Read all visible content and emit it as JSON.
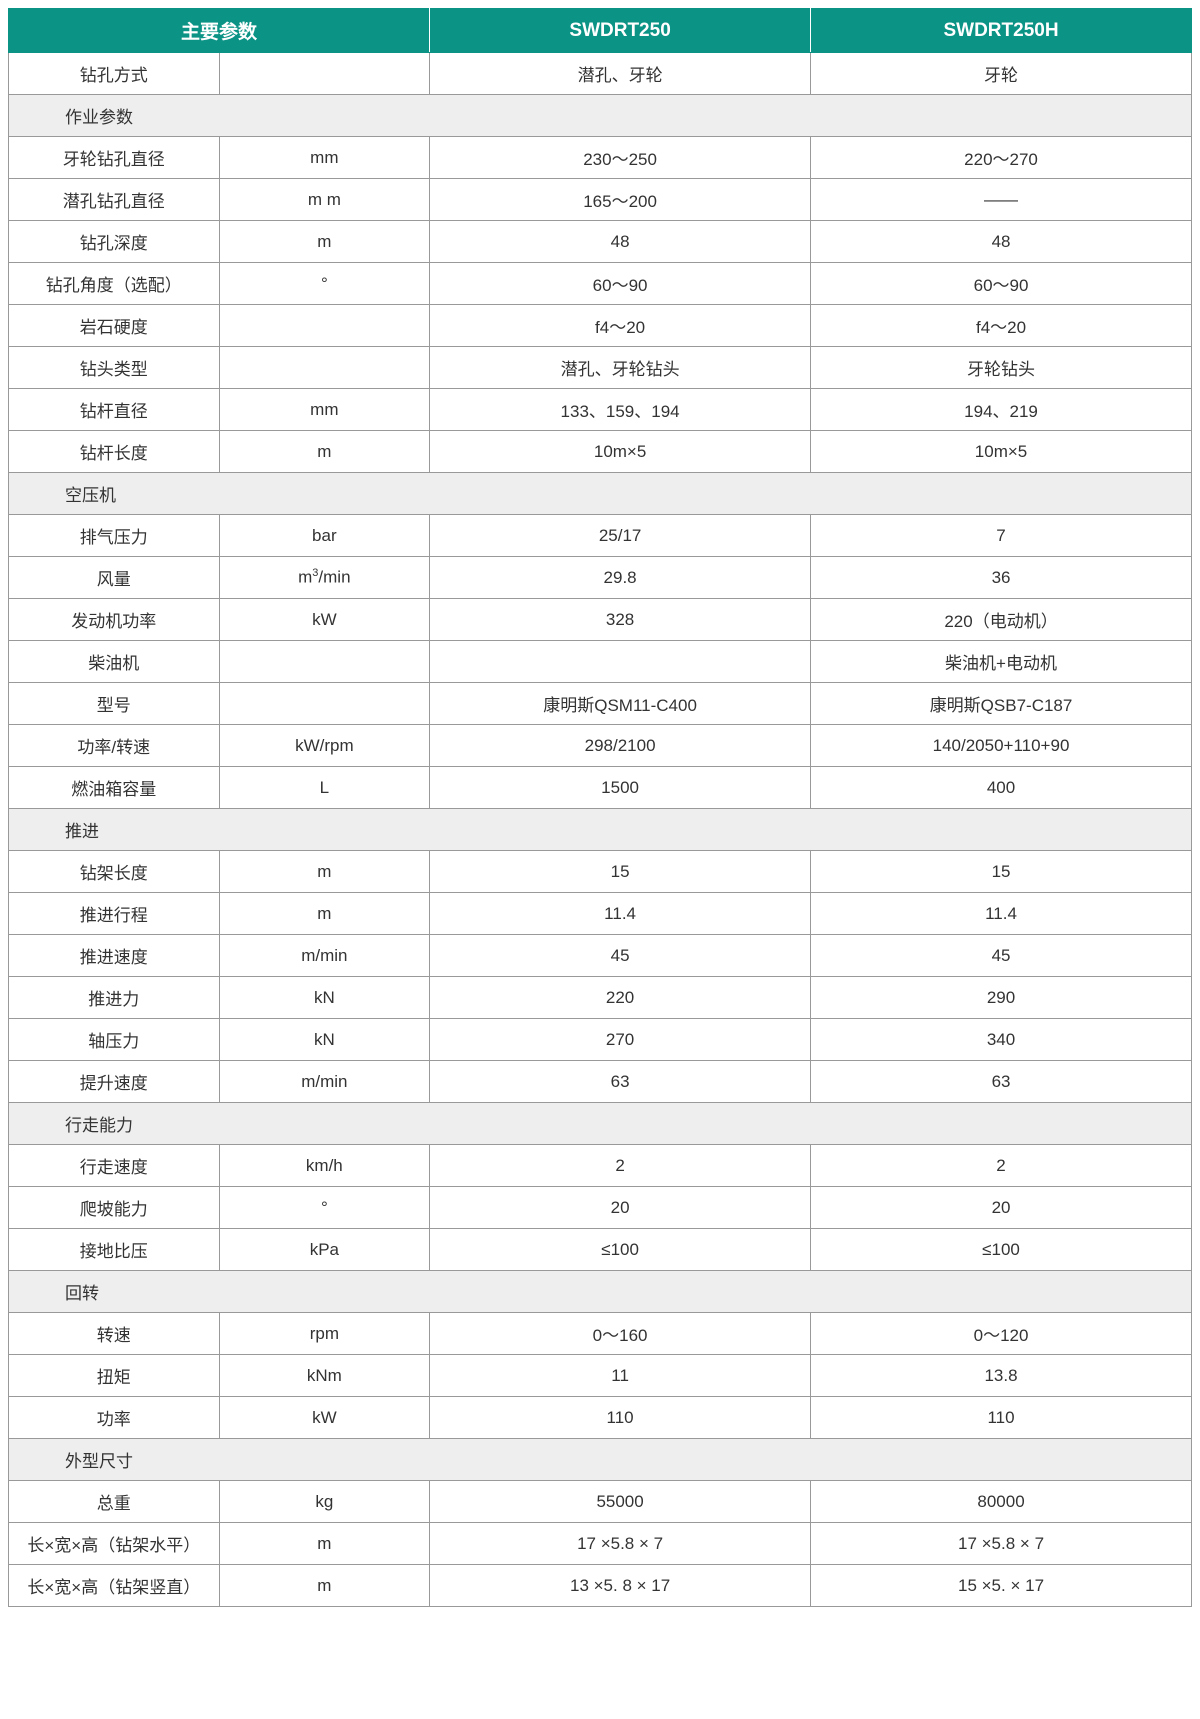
{
  "colors": {
    "header_bg": "#0b9385",
    "header_text": "#ffffff",
    "section_bg": "#eeeeee",
    "border": "#999999",
    "text": "#333333",
    "background": "#ffffff"
  },
  "typography": {
    "header_fontsize_pt": 14,
    "cell_fontsize_pt": 13,
    "font_family": "Microsoft YaHei"
  },
  "table": {
    "type": "table",
    "column_widths_pct": [
      17.8,
      17.8,
      32.2,
      32.2
    ],
    "headers": [
      "主要参数",
      "SWDRT250",
      "SWDRT250H"
    ],
    "rows": [
      {
        "type": "data",
        "label": "钻孔方式",
        "unit": "",
        "v1": "潜孔、牙轮",
        "v2": "牙轮"
      },
      {
        "type": "section",
        "label": "作业参数"
      },
      {
        "type": "data",
        "label": "牙轮钻孔直径",
        "unit": "mm",
        "v1": "230～250",
        "v2": "220～270"
      },
      {
        "type": "data",
        "label": "潜孔钻孔直径",
        "unit": "m m",
        "v1": "165～200",
        "v2": "——"
      },
      {
        "type": "data",
        "label": "钻孔深度",
        "unit": "m",
        "v1": "48",
        "v2": "48"
      },
      {
        "type": "data",
        "label": "钻孔角度（选配）",
        "unit": "°",
        "v1": "60～90",
        "v2": "60～90"
      },
      {
        "type": "data",
        "label": "岩石硬度",
        "unit": "",
        "v1": "f4～20",
        "v2": "f4～20"
      },
      {
        "type": "data",
        "label": "钻头类型",
        "unit": "",
        "v1": "潜孔、牙轮钻头",
        "v2": "牙轮钻头"
      },
      {
        "type": "data",
        "label": "钻杆直径",
        "unit": "mm",
        "v1": "133、159、194",
        "v2": "194、219"
      },
      {
        "type": "data",
        "label": "钻杆长度",
        "unit": "m",
        "v1": "10m×5",
        "v2": "10m×5"
      },
      {
        "type": "section",
        "label": "空压机"
      },
      {
        "type": "data",
        "label": "排气压力",
        "unit": "bar",
        "v1": "25/17",
        "v2": "7"
      },
      {
        "type": "data",
        "label": "风量",
        "unit": "m³/min",
        "v1": "29.8",
        "v2": "36"
      },
      {
        "type": "data",
        "label": "发动机功率",
        "unit": "kW",
        "v1": "328",
        "v2": "220（电动机）"
      },
      {
        "type": "data",
        "label": "柴油机",
        "unit": "",
        "v1": "",
        "v2": "柴油机+电动机"
      },
      {
        "type": "data",
        "label": "型号",
        "unit": "",
        "v1": "康明斯QSM11-C400",
        "v2": "康明斯QSB7-C187"
      },
      {
        "type": "data",
        "label": "功率/转速",
        "unit": "kW/rpm",
        "v1": "298/2100",
        "v2": "140/2050+110+90"
      },
      {
        "type": "data",
        "label": "燃油箱容量",
        "unit": "L",
        "v1": "1500",
        "v2": "400"
      },
      {
        "type": "section",
        "label": "推进"
      },
      {
        "type": "data",
        "label": "钻架长度",
        "unit": "m",
        "v1": "15",
        "v2": "15"
      },
      {
        "type": "data",
        "label": "推进行程",
        "unit": "m",
        "v1": "11.4",
        "v2": "11.4"
      },
      {
        "type": "data",
        "label": "推进速度",
        "unit": "m/min",
        "v1": "45",
        "v2": "45"
      },
      {
        "type": "data",
        "label": "推进力",
        "unit": "kN",
        "v1": "220",
        "v2": "290"
      },
      {
        "type": "data",
        "label": "轴压力",
        "unit": "kN",
        "v1": "270",
        "v2": "340"
      },
      {
        "type": "data",
        "label": "提升速度",
        "unit": "m/min",
        "v1": "63",
        "v2": "63"
      },
      {
        "type": "section",
        "label": "行走能力"
      },
      {
        "type": "data",
        "label": "行走速度",
        "unit": "km/h",
        "v1": "2",
        "v2": "2"
      },
      {
        "type": "data",
        "label": "爬坡能力",
        "unit": "°",
        "v1": "20",
        "v2": "20"
      },
      {
        "type": "data",
        "label": "接地比压",
        "unit": "kPa",
        "v1": "≤100",
        "v2": "≤100"
      },
      {
        "type": "section",
        "label": "回转"
      },
      {
        "type": "data",
        "label": "转速",
        "unit": "rpm",
        "v1": "0～160",
        "v2": "0～120"
      },
      {
        "type": "data",
        "label": "扭矩",
        "unit": "kNm",
        "v1": "11",
        "v2": "13.8"
      },
      {
        "type": "data",
        "label": "功率",
        "unit": "kW",
        "v1": "110",
        "v2": "110"
      },
      {
        "type": "section",
        "label": "外型尺寸"
      },
      {
        "type": "data",
        "label": "总重",
        "unit": "kg",
        "v1": "55000",
        "v2": "80000"
      },
      {
        "type": "data",
        "label": "长×宽×高（钻架水平）",
        "unit": "m",
        "v1": "17 ×5.8 × 7",
        "v2": "17 ×5.8 × 7"
      },
      {
        "type": "data",
        "label": "长×宽×高（钻架竖直）",
        "unit": "m",
        "v1": "13 ×5. 8 × 17",
        "v2": "15 ×5. × 17"
      }
    ]
  }
}
